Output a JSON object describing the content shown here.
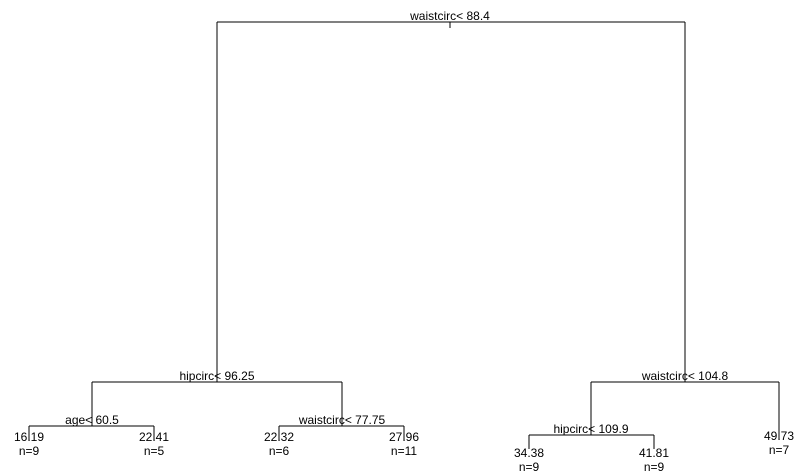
{
  "tree": {
    "line_color": "#000000",
    "root": {
      "split": "waistcirc< 88.4",
      "left": {
        "split": "hipcirc< 96.25",
        "left": {
          "split": "age< 60.5",
          "left": {
            "value": "16.19",
            "n": "n=9"
          },
          "right": {
            "value": "22.41",
            "n": "n=5"
          }
        },
        "right": {
          "split": "waistcirc< 77.75",
          "left": {
            "value": "22.32",
            "n": "n=6"
          },
          "right": {
            "value": "27.96",
            "n": "n=11"
          }
        }
      },
      "right": {
        "split": "waistcirc< 104.8",
        "left": {
          "split": "hipcirc< 109.9",
          "left": {
            "value": "34.38",
            "n": "n=9"
          },
          "right": {
            "value": "41.81",
            "n": "n=9"
          }
        },
        "right": {
          "value": "49.73",
          "n": "n=7"
        }
      }
    }
  }
}
